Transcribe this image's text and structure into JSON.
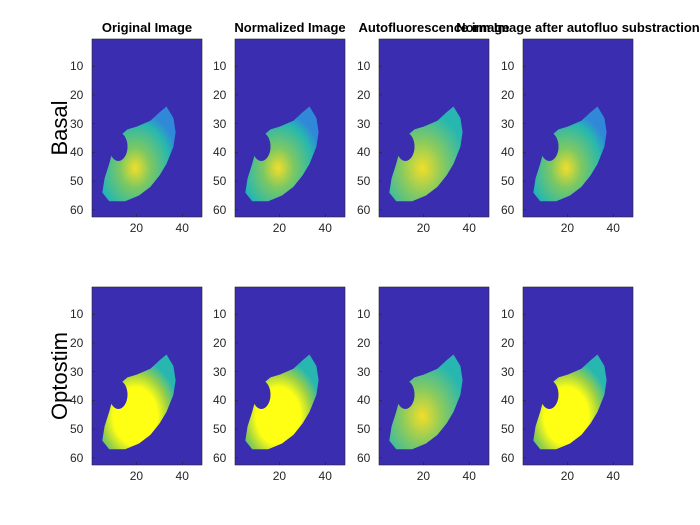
{
  "figure": {
    "row_labels": [
      "Basal",
      "Optostim"
    ],
    "column_titles": [
      "Original Image",
      "Normalized Image",
      "Autofluorescence image",
      "Norm Image after autofluo substraction"
    ],
    "y_ticks": [
      "10",
      "20",
      "30",
      "40",
      "50",
      "60"
    ],
    "x_ticks": [
      "20",
      "40"
    ]
  },
  "colors": {
    "background": "#3A2DB0",
    "tissue_low": "#2F89D8",
    "tissue_mid": "#27B7B0",
    "tissue_high": "#F2DE2A",
    "saturated": "#FFFF14",
    "hole": "#3A2DB0"
  }
}
